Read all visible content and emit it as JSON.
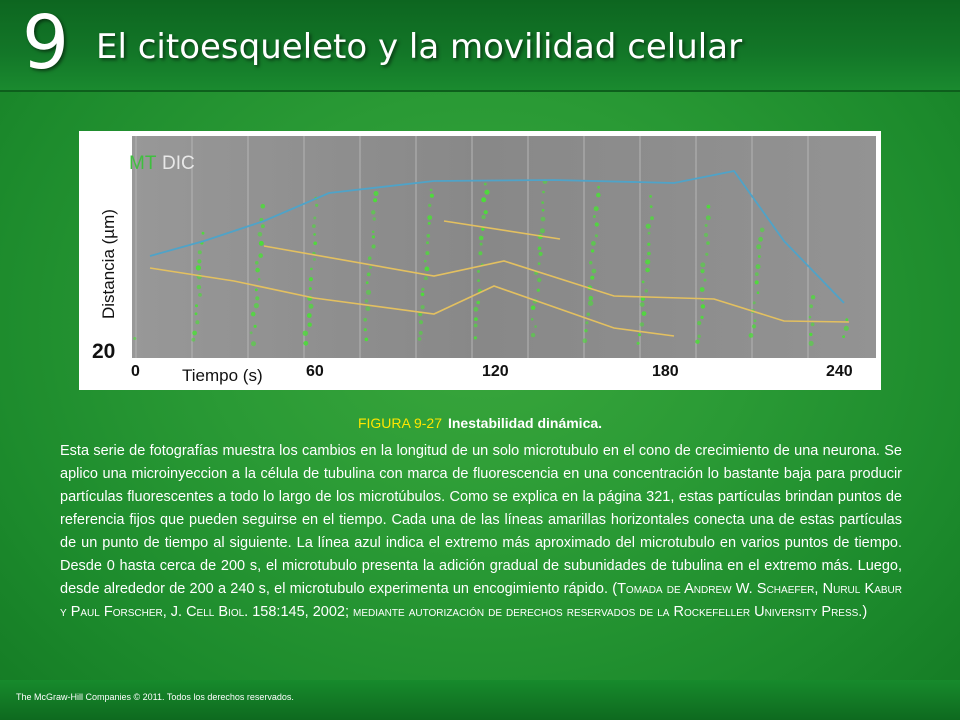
{
  "header": {
    "chapter_number": "9",
    "chapter_title": "El citoesqueleto y la movilidad celular"
  },
  "figure": {
    "label_mt": "MT",
    "label_dic": "DIC",
    "y_axis_label": "Distancia (µm)",
    "y_tick": "20",
    "x_axis_label": "Tiempo (s)",
    "x_ticks": [
      "0",
      "60",
      "120",
      "180",
      "240"
    ],
    "colors": {
      "blue_line": "#4fa3c8",
      "yellow_line": "#e3c060",
      "green_dots": "#4ddc3a",
      "mt_label": "#3fbf3f",
      "dic_label": "#e8e8e8"
    }
  },
  "caption": {
    "label": "FIGURA 9-27",
    "title": "Inestabilidad dinámica."
  },
  "body": {
    "text": "Esta serie de fotografías muestra los cambios en la longitud de un solo microtubulo en el cono de crecimiento de una neurona. Se aplico una microinyeccion a la célula de tubulina con marca de fluorescencia en una concentración lo bastante baja para producir partículas fluorescentes a todo lo largo de los microtúbulos. Como se explica en la página 321, estas partículas brindan puntos de referencia fijos que pueden seguirse en el tiempo. Cada una de las líneas amarillas horizontales conecta una de estas partículas de un punto de tiempo al siguiente. La línea azul indica el extremo más aproximado del microtubulo en varios puntos de tiempo. Desde 0 hasta cerca de 200 s, el microtubulo presenta la adición gradual de subunidades de tubulina en el extremo más. Luego, desde alrededor de 200 a 240 s, el microtubulo experimenta un encogimiento rápido. (",
    "credit": "Tomada de Andrew W. Schaefer, Nurul Kabur y Paul Forscher, J. Cell Biol. 158:145, 2002; mediante autorización de derechos reservados de la Rockefeller University Press.",
    "closing": ")"
  },
  "footer": {
    "copyright": "The McGraw-Hill Companies © 2011. Todos los derechos reservados."
  }
}
